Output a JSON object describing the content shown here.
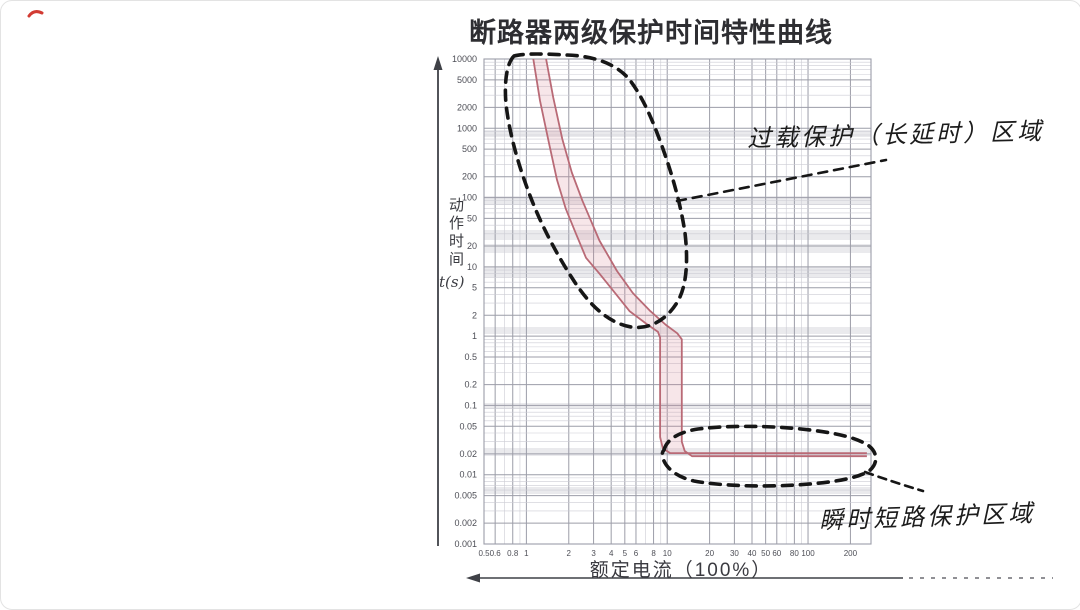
{
  "title": "断路器两级保护时间特性曲线",
  "annotations": {
    "overload": "过载保护（长延时）区域",
    "instantaneous": "瞬时短路保护区域"
  },
  "colors": {
    "curve": "#b96a76",
    "curve_fill": "rgba(214,130,145,0.20)",
    "region_outline": "#161616",
    "grid_minor": "#ccccd4",
    "grid_major": "#9c9da8",
    "axis": "#3f4147",
    "smudge_band": "rgba(125,127,140,0.16)",
    "tick_text": "#4d4e56",
    "artifact_red": "#d23b33"
  },
  "chart_data": {
    "type": "line",
    "title": "断路器两级保护时间特性曲线",
    "x_axis": {
      "label": "额定电流（100%）",
      "scale": "log",
      "min": 0.5,
      "max": 280,
      "tick_labels": [
        "0.5",
        "0.6",
        "0.8",
        "1",
        "2",
        "3",
        "4",
        "5",
        "6",
        "8",
        "10",
        "20",
        "30",
        "40",
        "50",
        "60",
        "80",
        "100",
        "200"
      ]
    },
    "y_axis": {
      "label": "动作时间",
      "unit_label": "t(s)",
      "scale": "log",
      "min": 0.001,
      "max": 10000,
      "tick_labels": [
        "10000",
        "5000",
        "2000",
        "1000",
        "500",
        "200",
        "100",
        "50",
        "20",
        "10",
        "5",
        "2",
        "1",
        "0.5",
        "0.2",
        "0.1",
        "0.05",
        "0.02",
        "0.01",
        "0.005",
        "0.002",
        "0.001"
      ]
    },
    "grid": true,
    "legend": "none",
    "series": [
      {
        "name": "lower-limit-curve",
        "points": [
          [
            1.12,
            10000
          ],
          [
            1.25,
            2500
          ],
          [
            1.45,
            600
          ],
          [
            1.65,
            180
          ],
          [
            1.9,
            70
          ],
          [
            2.25,
            30
          ],
          [
            2.65,
            13.5
          ],
          [
            3.3,
            8
          ],
          [
            4.3,
            4.1
          ],
          [
            5.4,
            2.3
          ],
          [
            7.3,
            1.45
          ],
          [
            8.6,
            1.15
          ],
          [
            8.9,
            0.95
          ],
          [
            8.9,
            0.035
          ],
          [
            9.3,
            0.024
          ],
          [
            10.5,
            0.0205
          ],
          [
            262,
            0.0205
          ]
        ]
      },
      {
        "name": "upper-limit-curve",
        "points": [
          [
            1.38,
            10000
          ],
          [
            1.55,
            2800
          ],
          [
            1.8,
            700
          ],
          [
            2.1,
            230
          ],
          [
            2.5,
            90
          ],
          [
            3.3,
            24
          ],
          [
            4.4,
            8.7
          ],
          [
            5.7,
            4.2
          ],
          [
            7.5,
            2.35
          ],
          [
            9.8,
            1.45
          ],
          [
            11.8,
            1.1
          ],
          [
            12.7,
            0.9
          ],
          [
            12.7,
            0.03
          ],
          [
            13.3,
            0.022
          ],
          [
            15,
            0.0185
          ],
          [
            262,
            0.0185
          ]
        ]
      }
    ],
    "regions": [
      {
        "name": "overload-long-delay-region",
        "label": "过载保护（长延时）区域"
      },
      {
        "name": "instantaneous-short-circuit-region",
        "label": "瞬时短路保护区域"
      }
    ]
  }
}
